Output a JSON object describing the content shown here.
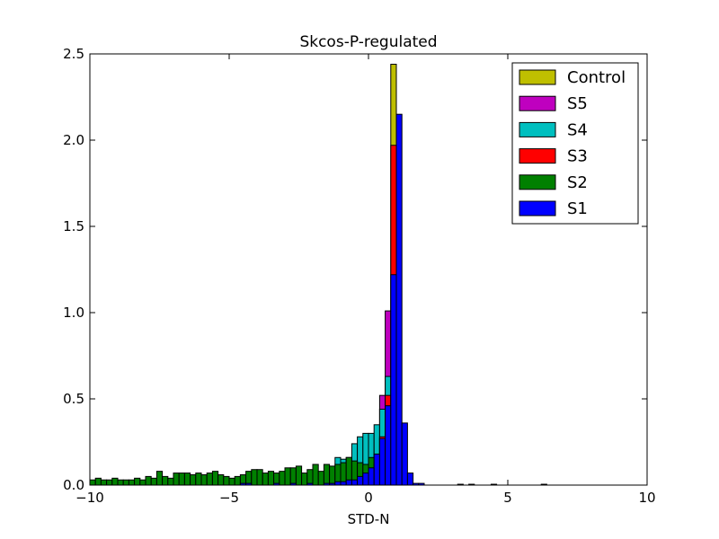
{
  "chart_data": {
    "type": "bar",
    "title": "Skcos-P-regulated",
    "xlabel": "STD-N",
    "ylabel": "",
    "xlim": [
      -10,
      10
    ],
    "ylim": [
      0,
      2.5
    ],
    "x_ticks": [
      "−10",
      "−5",
      "0",
      "5",
      "10"
    ],
    "x_tick_values": [
      -10,
      -5,
      0,
      5,
      10
    ],
    "y_ticks": [
      "0.0",
      "0.5",
      "1.0",
      "1.5",
      "2.0",
      "2.5"
    ],
    "y_tick_values": [
      0,
      0.5,
      1.0,
      1.5,
      2.0,
      2.5
    ],
    "stacked": true,
    "histtype": "stepfilled",
    "grid": false,
    "legend_position": "top-right",
    "legend": [
      "Control",
      "S5",
      "S4",
      "S3",
      "S2",
      "S1"
    ],
    "series": [
      {
        "name": "Control",
        "color": "#bfbf00",
        "bins": [
          [
            0.8,
            1.0,
            2.44
          ]
        ]
      },
      {
        "name": "S5",
        "color": "#bf00bf",
        "bins": [
          [
            0.4,
            0.6,
            0.52
          ],
          [
            0.6,
            0.8,
            1.01
          ]
        ]
      },
      {
        "name": "S4",
        "color": "#00bfbf",
        "bins": [
          [
            -1.2,
            -1.0,
            0.16
          ],
          [
            -1.0,
            -0.8,
            0.15
          ],
          [
            -0.8,
            -0.6,
            0.16
          ],
          [
            -0.6,
            -0.4,
            0.24
          ],
          [
            -0.4,
            -0.2,
            0.28
          ],
          [
            -0.2,
            0.0,
            0.3
          ],
          [
            0.0,
            0.2,
            0.3
          ],
          [
            0.2,
            0.4,
            0.35
          ],
          [
            0.4,
            0.6,
            0.44
          ],
          [
            0.6,
            0.8,
            0.63
          ]
        ]
      },
      {
        "name": "S3",
        "color": "#ff0000",
        "bins": [
          [
            0.4,
            0.6,
            0.28
          ],
          [
            0.6,
            0.8,
            0.52
          ],
          [
            0.8,
            1.0,
            1.97
          ]
        ]
      },
      {
        "name": "S2",
        "color": "#008000",
        "bins": [
          [
            -10.0,
            -9.8,
            0.03
          ],
          [
            -9.8,
            -9.6,
            0.04
          ],
          [
            -9.6,
            -9.4,
            0.03
          ],
          [
            -9.4,
            -9.2,
            0.03
          ],
          [
            -9.2,
            -9.0,
            0.04
          ],
          [
            -9.0,
            -8.8,
            0.03
          ],
          [
            -8.8,
            -8.6,
            0.03
          ],
          [
            -8.6,
            -8.4,
            0.03
          ],
          [
            -8.4,
            -8.2,
            0.04
          ],
          [
            -8.2,
            -8.0,
            0.03
          ],
          [
            -8.0,
            -7.8,
            0.05
          ],
          [
            -7.8,
            -7.6,
            0.04
          ],
          [
            -7.6,
            -7.4,
            0.08
          ],
          [
            -7.4,
            -7.2,
            0.05
          ],
          [
            -7.2,
            -7.0,
            0.04
          ],
          [
            -7.0,
            -6.8,
            0.07
          ],
          [
            -6.8,
            -6.6,
            0.07
          ],
          [
            -6.6,
            -6.4,
            0.07
          ],
          [
            -6.4,
            -6.2,
            0.06
          ],
          [
            -6.2,
            -6.0,
            0.07
          ],
          [
            -6.0,
            -5.8,
            0.06
          ],
          [
            -5.8,
            -5.6,
            0.07
          ],
          [
            -5.6,
            -5.4,
            0.08
          ],
          [
            -5.4,
            -5.2,
            0.06
          ],
          [
            -5.2,
            -5.0,
            0.05
          ],
          [
            -5.0,
            -4.8,
            0.04
          ],
          [
            -4.8,
            -4.6,
            0.05
          ],
          [
            -4.6,
            -4.4,
            0.06
          ],
          [
            -4.4,
            -4.2,
            0.08
          ],
          [
            -4.2,
            -4.0,
            0.09
          ],
          [
            -4.0,
            -3.8,
            0.09
          ],
          [
            -3.8,
            -3.6,
            0.07
          ],
          [
            -3.6,
            -3.4,
            0.08
          ],
          [
            -3.4,
            -3.2,
            0.07
          ],
          [
            -3.2,
            -3.0,
            0.08
          ],
          [
            -3.0,
            -2.8,
            0.1
          ],
          [
            -2.8,
            -2.6,
            0.1
          ],
          [
            -2.6,
            -2.4,
            0.11
          ],
          [
            -2.4,
            -2.2,
            0.07
          ],
          [
            -2.2,
            -2.0,
            0.09
          ],
          [
            -2.0,
            -1.8,
            0.12
          ],
          [
            -1.8,
            -1.6,
            0.08
          ],
          [
            -1.6,
            -1.4,
            0.12
          ],
          [
            -1.4,
            -1.2,
            0.11
          ],
          [
            -1.2,
            -1.0,
            0.12
          ],
          [
            -1.0,
            -0.8,
            0.13
          ],
          [
            -0.8,
            -0.6,
            0.16
          ],
          [
            -0.6,
            -0.4,
            0.14
          ],
          [
            -0.4,
            -0.2,
            0.13
          ],
          [
            -0.2,
            0.0,
            0.12
          ],
          [
            0.0,
            0.2,
            0.16
          ],
          [
            0.2,
            0.4,
            0.12
          ],
          [
            0.4,
            0.6,
            0.09
          ],
          [
            0.6,
            0.8,
            0.12
          ]
        ]
      },
      {
        "name": "S1",
        "color": "#0000ff",
        "bins": [
          [
            -4.6,
            -4.4,
            0.01
          ],
          [
            -4.4,
            -4.2,
            0.01
          ],
          [
            -3.4,
            -3.2,
            0.01
          ],
          [
            -2.8,
            -2.6,
            0.01
          ],
          [
            -2.2,
            -2.0,
            0.01
          ],
          [
            -1.6,
            -1.4,
            0.01
          ],
          [
            -1.4,
            -1.2,
            0.01
          ],
          [
            -1.2,
            -1.0,
            0.02
          ],
          [
            -1.0,
            -0.8,
            0.02
          ],
          [
            -0.8,
            -0.6,
            0.03
          ],
          [
            -0.6,
            -0.4,
            0.03
          ],
          [
            -0.4,
            -0.2,
            0.05
          ],
          [
            -0.2,
            0.0,
            0.07
          ],
          [
            0.0,
            0.2,
            0.1
          ],
          [
            0.2,
            0.4,
            0.18
          ],
          [
            0.4,
            0.6,
            0.27
          ],
          [
            0.6,
            0.8,
            0.46
          ],
          [
            0.8,
            1.0,
            1.22
          ],
          [
            1.0,
            1.2,
            2.15
          ],
          [
            1.2,
            1.4,
            0.36
          ],
          [
            1.4,
            1.6,
            0.07
          ],
          [
            1.6,
            1.8,
            0.01
          ],
          [
            1.8,
            2.0,
            0.01
          ],
          [
            3.2,
            3.4,
            0.005
          ],
          [
            3.6,
            3.8,
            0.005
          ],
          [
            4.4,
            4.6,
            0.005
          ],
          [
            6.2,
            6.4,
            0.005
          ]
        ]
      }
    ]
  }
}
